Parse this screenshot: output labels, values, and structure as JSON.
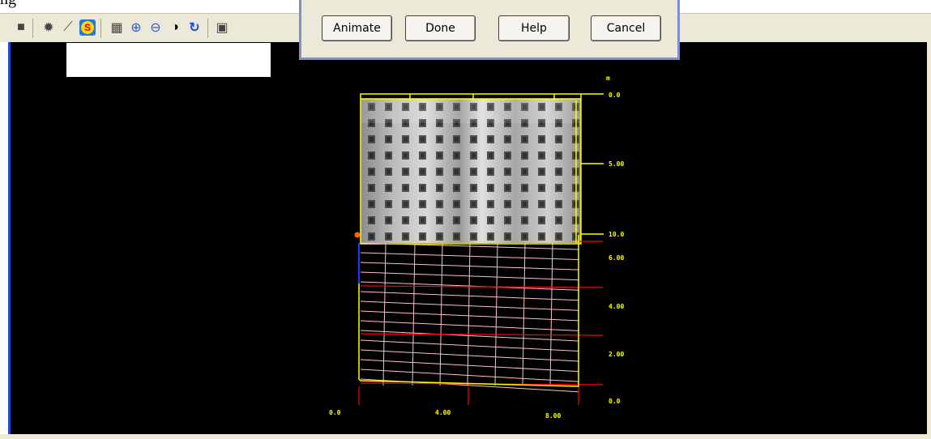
{
  "top_fragment": "ng",
  "toolbar": {
    "tools": [
      {
        "name": "shape-icon",
        "glyph": "■"
      },
      {
        "name": "gear-icon",
        "glyph": "✹"
      },
      {
        "name": "graph-icon",
        "glyph": "⟋"
      },
      {
        "name": "s-logo-icon",
        "glyph": "S"
      },
      {
        "name": "grid-icon",
        "glyph": "▦"
      },
      {
        "name": "zoom-in-icon",
        "glyph": "⊕"
      },
      {
        "name": "zoom-out-icon",
        "glyph": "⊖"
      },
      {
        "name": "contrast-icon",
        "glyph": "◑"
      },
      {
        "name": "rotate-icon",
        "glyph": "↻"
      },
      {
        "name": "partial-icon",
        "glyph": "▣"
      }
    ]
  },
  "dialog": {
    "buttons": [
      {
        "id": "animate",
        "label": "Animate"
      },
      {
        "id": "done",
        "label": "Done"
      },
      {
        "id": "help",
        "label": "Help"
      },
      {
        "id": "cancel",
        "label": "Cancel"
      }
    ]
  },
  "plot": {
    "right_axis_header": "m",
    "right_axis_upper": [
      "0.0",
      "5.00",
      "10.0"
    ],
    "right_axis_lower": [
      "6.00",
      "4.00",
      "2.00",
      "0.0"
    ],
    "bottom_axis": [
      "0.0",
      "4.00",
      "8.00"
    ],
    "colors": {
      "frame": "#ffff00",
      "pink_grid": "#ffc0cb",
      "red_grid": "#ff0000",
      "marker": "#ff6600",
      "blue_edge": "#1a3cff"
    }
  }
}
